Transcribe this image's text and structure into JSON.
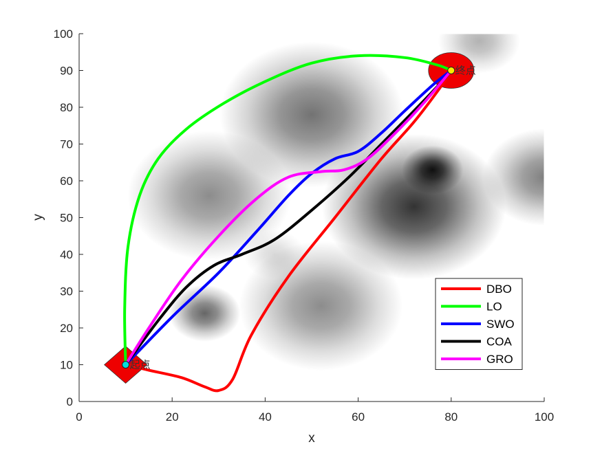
{
  "chart_data": {
    "type": "line",
    "title": "",
    "xlabel": "x",
    "ylabel": "y",
    "xlim": [
      0,
      100
    ],
    "ylim": [
      0,
      100
    ],
    "xticks": [
      0,
      20,
      40,
      60,
      80,
      100
    ],
    "yticks": [
      0,
      10,
      20,
      30,
      40,
      50,
      60,
      70,
      80,
      90,
      100
    ],
    "grid": false,
    "legend_position": "bottom-right",
    "background": "grayscale terrain / threat map with dark gaussian blobs",
    "start": {
      "x": 10,
      "y": 10,
      "label": "起点"
    },
    "goal": {
      "x": 80,
      "y": 90,
      "label": "终点"
    },
    "obstacles": [
      {
        "x": 42,
        "y": 40,
        "r": 3,
        "intensity": 0.15
      },
      {
        "x": 50,
        "y": 78,
        "r": 9,
        "intensity": 0.55
      },
      {
        "x": 28,
        "y": 56,
        "r": 8,
        "intensity": 0.45
      },
      {
        "x": 72,
        "y": 53,
        "r": 9,
        "intensity": 0.8
      },
      {
        "x": 76,
        "y": 63,
        "r": 3,
        "intensity": 0.9
      },
      {
        "x": 100,
        "y": 61,
        "r": 6,
        "intensity": 0.5
      },
      {
        "x": 52,
        "y": 26,
        "r": 8,
        "intensity": 0.45
      },
      {
        "x": 27,
        "y": 24,
        "r": 3.5,
        "intensity": 0.6
      },
      {
        "x": 86,
        "y": 98,
        "r": 4,
        "intensity": 0.3
      }
    ],
    "series": [
      {
        "name": "DBO",
        "color": "#ff0000",
        "x": [
          10,
          15,
          22,
          27,
          30,
          33,
          37,
          45,
          55,
          65,
          72,
          78,
          80
        ],
        "y": [
          10,
          8.5,
          6.5,
          4,
          3,
          6,
          18,
          34,
          50,
          66,
          76,
          86,
          90
        ]
      },
      {
        "name": "LO",
        "color": "#00ff00",
        "x": [
          10,
          9.8,
          10.5,
          13,
          17,
          23,
          31,
          40,
          50,
          60,
          70,
          77,
          80
        ],
        "y": [
          10,
          25,
          42,
          56,
          66,
          74,
          81,
          87,
          92,
          94,
          93.5,
          91.5,
          90
        ]
      },
      {
        "name": "SWO",
        "color": "#0000ff",
        "x": [
          10,
          20,
          30,
          38,
          45,
          50,
          55,
          60,
          65,
          70,
          76,
          80
        ],
        "y": [
          10,
          23,
          35,
          46,
          56,
          62,
          66,
          68,
          73,
          79,
          86,
          90
        ]
      },
      {
        "name": "COA",
        "color": "#000000",
        "x": [
          10,
          17,
          23,
          29,
          35,
          42,
          50,
          58,
          65,
          72,
          78,
          80
        ],
        "y": [
          10,
          22,
          31,
          37,
          40,
          44,
          52,
          61,
          70,
          79,
          87,
          90
        ]
      },
      {
        "name": "GRO",
        "color": "#ff00ff",
        "x": [
          10,
          15,
          22,
          30,
          38,
          45,
          52,
          57,
          62,
          68,
          74,
          80
        ],
        "y": [
          10,
          20,
          33,
          45,
          55,
          61,
          62.5,
          63,
          66,
          73,
          81,
          90
        ]
      }
    ]
  }
}
